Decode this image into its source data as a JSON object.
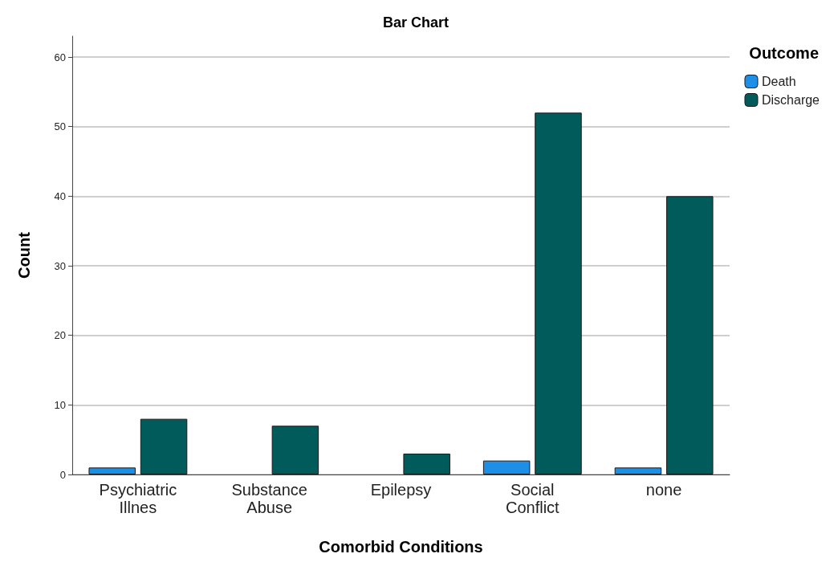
{
  "chart_data": {
    "type": "bar",
    "title": "Bar Chart",
    "xlabel": "Comorbid Conditions",
    "ylabel": "Count",
    "legend_title": "Outcome",
    "categories": [
      "Psychiatric\nIllnes",
      "Substance\nAbuse",
      "Epilepsy",
      "Social\nConflict",
      "none"
    ],
    "series": [
      {
        "name": "Death",
        "color": "#1e8fe6",
        "values": [
          1,
          null,
          null,
          2,
          1
        ]
      },
      {
        "name": "Discharge",
        "color": "#005b5a",
        "values": [
          8,
          7,
          3,
          52,
          40
        ]
      }
    ],
    "ylim": [
      0,
      63
    ],
    "yticks": [
      0,
      10,
      20,
      30,
      40,
      50,
      60
    ],
    "grid": "y",
    "legend": "top right"
  }
}
